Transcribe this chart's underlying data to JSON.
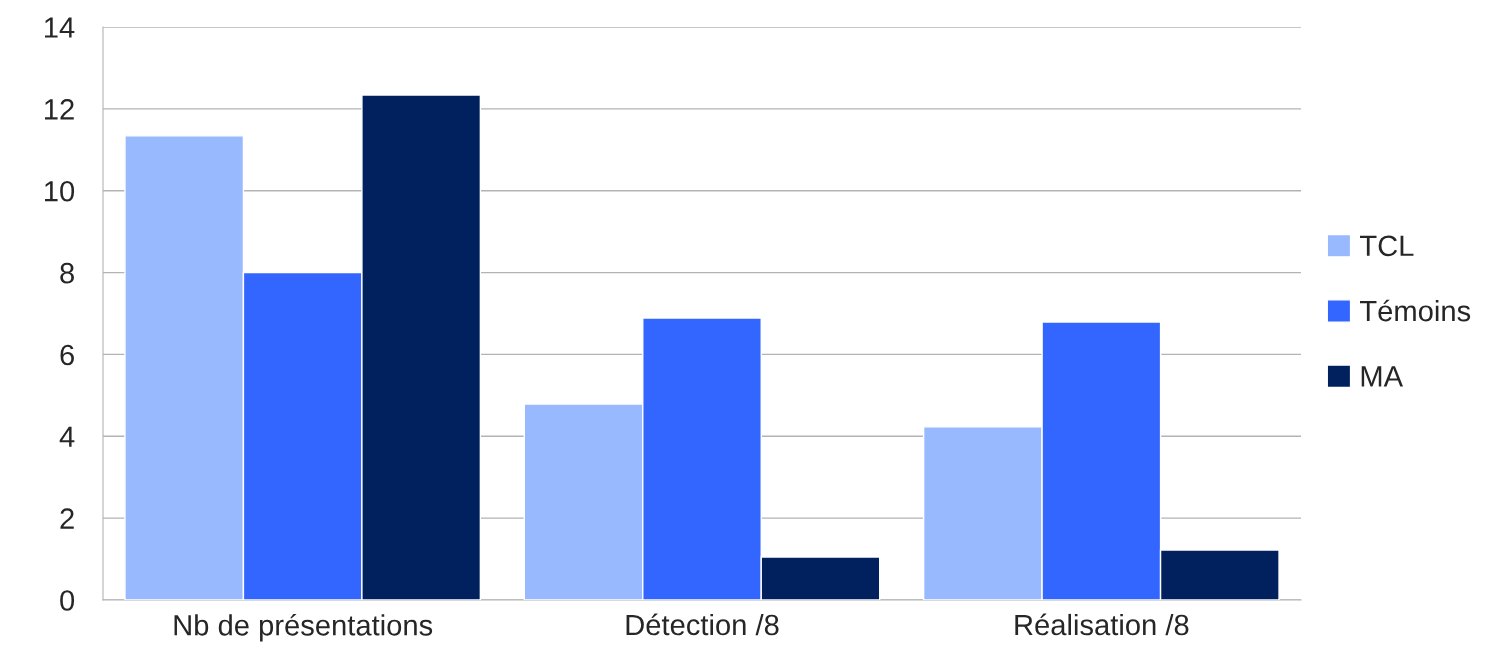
{
  "chart_data": {
    "type": "bar",
    "categories": [
      "Nb de présentations",
      "Détection /8",
      "Réalisation /8"
    ],
    "series": [
      {
        "name": "TCL",
        "color": "#99b9ff",
        "values": [
          11.34,
          4.79,
          4.23
        ]
      },
      {
        "name": "Témoins",
        "color": "#3366ff",
        "values": [
          8.0,
          6.89,
          6.79
        ]
      },
      {
        "name": "MA",
        "color": "#00215e",
        "values": [
          12.34,
          1.05,
          1.22
        ]
      }
    ],
    "ylim": [
      0,
      14
    ],
    "yticks": [
      0,
      2,
      4,
      6,
      8,
      10,
      12,
      14
    ],
    "grid": "y",
    "legend": "right"
  }
}
